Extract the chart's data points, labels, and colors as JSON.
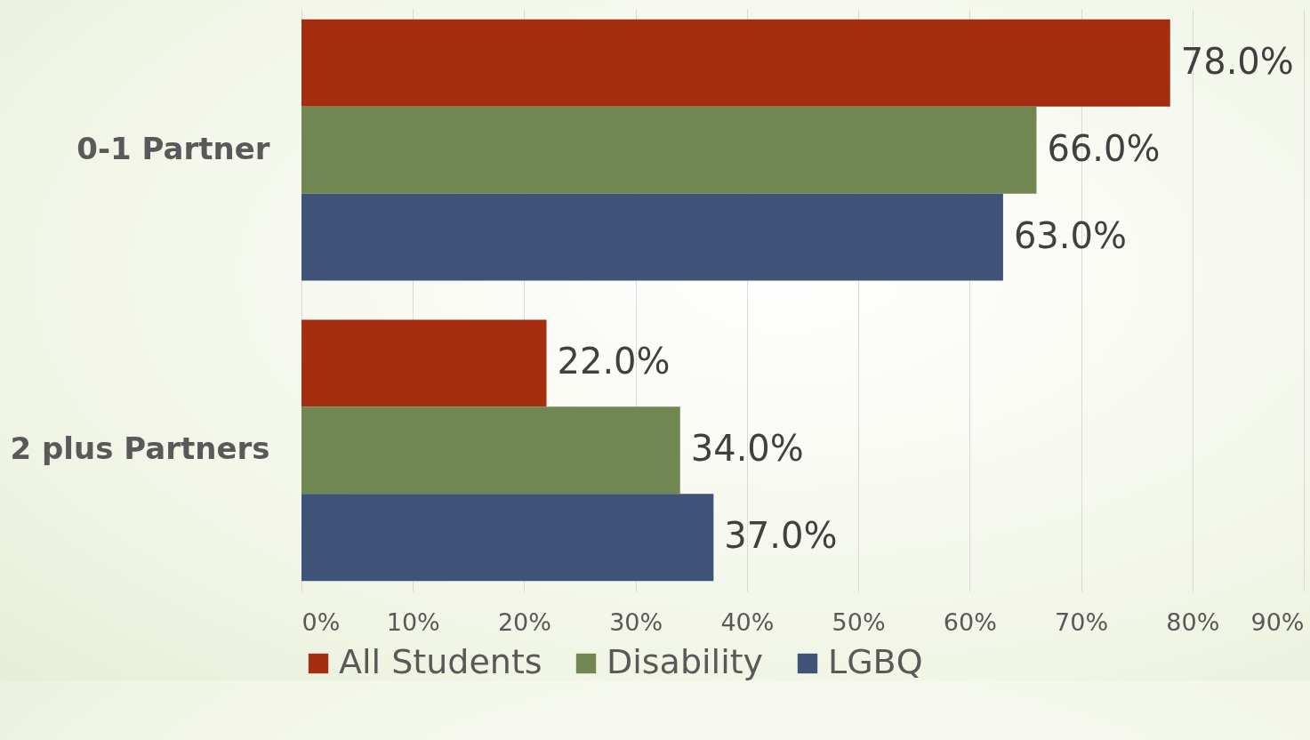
{
  "chart_data": {
    "type": "bar",
    "orientation": "horizontal",
    "categories": [
      "0-1 Partner",
      "2 plus Partners"
    ],
    "series": [
      {
        "name": "All Students",
        "color": "#a52e10",
        "values": [
          78,
          22
        ],
        "value_labels": [
          "78.0%",
          "22.0%"
        ]
      },
      {
        "name": "Disability",
        "color": "#718752",
        "values": [
          66,
          34
        ],
        "value_labels": [
          "66.0%",
          "34.0%"
        ]
      },
      {
        "name": "LGBQ",
        "color": "#3f5378",
        "values": [
          63,
          37
        ],
        "value_labels": [
          "63.0%",
          "37.0%"
        ]
      }
    ],
    "xlim": [
      0,
      90
    ],
    "xticks": [
      {
        "value": 0,
        "label": "0%"
      },
      {
        "value": 10,
        "label": "10%"
      },
      {
        "value": 20,
        "label": "20%"
      },
      {
        "value": 30,
        "label": "30%"
      },
      {
        "value": 40,
        "label": "40%"
      },
      {
        "value": 50,
        "label": "50%"
      },
      {
        "value": 60,
        "label": "60%"
      },
      {
        "value": 70,
        "label": "70%"
      },
      {
        "value": 80,
        "label": "80%"
      },
      {
        "value": 90,
        "label": "90%"
      }
    ],
    "grid": "x",
    "legend": "bottom"
  }
}
